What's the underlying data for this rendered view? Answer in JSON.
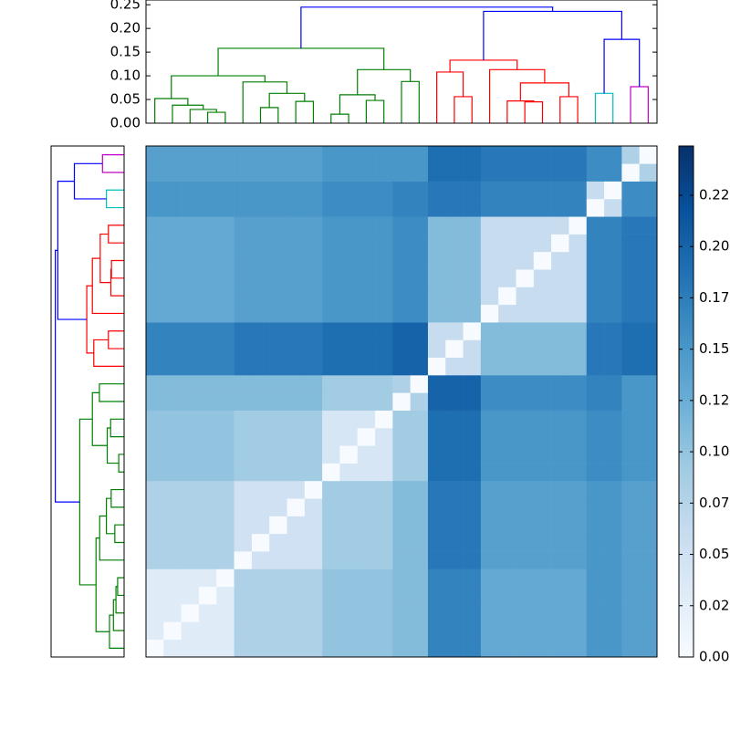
{
  "chart_data": {
    "type": "clustermap",
    "matrix": [
      [
        0,
        0.03,
        0.03,
        0.03,
        0.03,
        0.08,
        0.08,
        0.08,
        0.08,
        0.08,
        0.1,
        0.1,
        0.1,
        0.1,
        0.11,
        0.11,
        0.17,
        0.17,
        0.17,
        0.13,
        0.13,
        0.13,
        0.13,
        0.13,
        0.13,
        0.15,
        0.15,
        0.14,
        0.14
      ],
      [
        0.03,
        0,
        0.03,
        0.03,
        0.03,
        0.08,
        0.08,
        0.08,
        0.08,
        0.08,
        0.1,
        0.1,
        0.1,
        0.1,
        0.11,
        0.11,
        0.17,
        0.17,
        0.17,
        0.13,
        0.13,
        0.13,
        0.13,
        0.13,
        0.13,
        0.15,
        0.15,
        0.14,
        0.14
      ],
      [
        0.03,
        0.03,
        0,
        0.03,
        0.03,
        0.08,
        0.08,
        0.08,
        0.08,
        0.08,
        0.1,
        0.1,
        0.1,
        0.1,
        0.11,
        0.11,
        0.17,
        0.17,
        0.17,
        0.13,
        0.13,
        0.13,
        0.13,
        0.13,
        0.13,
        0.15,
        0.15,
        0.14,
        0.14
      ],
      [
        0.03,
        0.03,
        0.03,
        0,
        0.03,
        0.08,
        0.08,
        0.08,
        0.08,
        0.08,
        0.1,
        0.1,
        0.1,
        0.1,
        0.11,
        0.11,
        0.17,
        0.17,
        0.17,
        0.13,
        0.13,
        0.13,
        0.13,
        0.13,
        0.13,
        0.15,
        0.15,
        0.14,
        0.14
      ],
      [
        0.03,
        0.03,
        0.03,
        0.03,
        0,
        0.08,
        0.08,
        0.08,
        0.08,
        0.08,
        0.1,
        0.1,
        0.1,
        0.1,
        0.11,
        0.11,
        0.17,
        0.17,
        0.17,
        0.13,
        0.13,
        0.13,
        0.13,
        0.13,
        0.13,
        0.15,
        0.15,
        0.14,
        0.14
      ],
      [
        0.08,
        0.08,
        0.08,
        0.08,
        0.08,
        0,
        0.05,
        0.05,
        0.05,
        0.05,
        0.09,
        0.09,
        0.09,
        0.09,
        0.11,
        0.11,
        0.18,
        0.18,
        0.18,
        0.14,
        0.14,
        0.14,
        0.14,
        0.14,
        0.14,
        0.15,
        0.15,
        0.14,
        0.14
      ],
      [
        0.08,
        0.08,
        0.08,
        0.08,
        0.08,
        0.05,
        0,
        0.05,
        0.05,
        0.05,
        0.09,
        0.09,
        0.09,
        0.09,
        0.11,
        0.11,
        0.18,
        0.18,
        0.18,
        0.14,
        0.14,
        0.14,
        0.14,
        0.14,
        0.14,
        0.15,
        0.15,
        0.14,
        0.14
      ],
      [
        0.08,
        0.08,
        0.08,
        0.08,
        0.08,
        0.05,
        0.05,
        0,
        0.05,
        0.05,
        0.09,
        0.09,
        0.09,
        0.09,
        0.11,
        0.11,
        0.18,
        0.18,
        0.18,
        0.14,
        0.14,
        0.14,
        0.14,
        0.14,
        0.14,
        0.15,
        0.15,
        0.14,
        0.14
      ],
      [
        0.08,
        0.08,
        0.08,
        0.08,
        0.08,
        0.05,
        0.05,
        0.05,
        0,
        0.05,
        0.09,
        0.09,
        0.09,
        0.09,
        0.11,
        0.11,
        0.18,
        0.18,
        0.18,
        0.14,
        0.14,
        0.14,
        0.14,
        0.14,
        0.14,
        0.15,
        0.15,
        0.14,
        0.14
      ],
      [
        0.08,
        0.08,
        0.08,
        0.08,
        0.08,
        0.05,
        0.05,
        0.05,
        0.05,
        0,
        0.09,
        0.09,
        0.09,
        0.09,
        0.11,
        0.11,
        0.18,
        0.18,
        0.18,
        0.14,
        0.14,
        0.14,
        0.14,
        0.14,
        0.14,
        0.15,
        0.15,
        0.14,
        0.14
      ],
      [
        0.1,
        0.1,
        0.1,
        0.1,
        0.1,
        0.09,
        0.09,
        0.09,
        0.09,
        0.09,
        0,
        0.04,
        0.04,
        0.04,
        0.09,
        0.09,
        0.19,
        0.19,
        0.19,
        0.15,
        0.15,
        0.15,
        0.15,
        0.15,
        0.15,
        0.16,
        0.16,
        0.15,
        0.15
      ],
      [
        0.1,
        0.1,
        0.1,
        0.1,
        0.1,
        0.09,
        0.09,
        0.09,
        0.09,
        0.09,
        0.04,
        0,
        0.04,
        0.04,
        0.09,
        0.09,
        0.19,
        0.19,
        0.19,
        0.15,
        0.15,
        0.15,
        0.15,
        0.15,
        0.15,
        0.16,
        0.16,
        0.15,
        0.15
      ],
      [
        0.1,
        0.1,
        0.1,
        0.1,
        0.1,
        0.09,
        0.09,
        0.09,
        0.09,
        0.09,
        0.04,
        0.04,
        0,
        0.04,
        0.09,
        0.09,
        0.19,
        0.19,
        0.19,
        0.15,
        0.15,
        0.15,
        0.15,
        0.15,
        0.15,
        0.16,
        0.16,
        0.15,
        0.15
      ],
      [
        0.1,
        0.1,
        0.1,
        0.1,
        0.1,
        0.09,
        0.09,
        0.09,
        0.09,
        0.09,
        0.04,
        0.04,
        0.04,
        0,
        0.09,
        0.09,
        0.19,
        0.19,
        0.19,
        0.15,
        0.15,
        0.15,
        0.15,
        0.15,
        0.15,
        0.16,
        0.16,
        0.15,
        0.15
      ],
      [
        0.11,
        0.11,
        0.11,
        0.11,
        0.11,
        0.11,
        0.11,
        0.11,
        0.11,
        0.11,
        0.09,
        0.09,
        0.09,
        0.09,
        0,
        0.08,
        0.2,
        0.2,
        0.2,
        0.16,
        0.16,
        0.16,
        0.16,
        0.16,
        0.16,
        0.17,
        0.17,
        0.15,
        0.15
      ],
      [
        0.11,
        0.11,
        0.11,
        0.11,
        0.11,
        0.11,
        0.11,
        0.11,
        0.11,
        0.11,
        0.09,
        0.09,
        0.09,
        0.09,
        0.08,
        0,
        0.2,
        0.2,
        0.2,
        0.16,
        0.16,
        0.16,
        0.16,
        0.16,
        0.16,
        0.17,
        0.17,
        0.15,
        0.15
      ],
      [
        0.17,
        0.17,
        0.17,
        0.17,
        0.17,
        0.18,
        0.18,
        0.18,
        0.18,
        0.18,
        0.19,
        0.19,
        0.19,
        0.19,
        0.2,
        0.2,
        0,
        0.06,
        0.06,
        0.11,
        0.11,
        0.11,
        0.11,
        0.11,
        0.11,
        0.18,
        0.18,
        0.19,
        0.19
      ],
      [
        0.17,
        0.17,
        0.17,
        0.17,
        0.17,
        0.18,
        0.18,
        0.18,
        0.18,
        0.18,
        0.19,
        0.19,
        0.19,
        0.19,
        0.2,
        0.2,
        0.06,
        0,
        0.06,
        0.11,
        0.11,
        0.11,
        0.11,
        0.11,
        0.11,
        0.18,
        0.18,
        0.19,
        0.19
      ],
      [
        0.17,
        0.17,
        0.17,
        0.17,
        0.17,
        0.18,
        0.18,
        0.18,
        0.18,
        0.18,
        0.19,
        0.19,
        0.19,
        0.19,
        0.2,
        0.2,
        0.06,
        0.06,
        0,
        0.11,
        0.11,
        0.11,
        0.11,
        0.11,
        0.11,
        0.18,
        0.18,
        0.19,
        0.19
      ],
      [
        0.13,
        0.13,
        0.13,
        0.13,
        0.13,
        0.14,
        0.14,
        0.14,
        0.14,
        0.14,
        0.15,
        0.15,
        0.15,
        0.15,
        0.16,
        0.16,
        0.11,
        0.11,
        0.11,
        0,
        0.06,
        0.06,
        0.06,
        0.06,
        0.06,
        0.17,
        0.17,
        0.18,
        0.18
      ],
      [
        0.13,
        0.13,
        0.13,
        0.13,
        0.13,
        0.14,
        0.14,
        0.14,
        0.14,
        0.14,
        0.15,
        0.15,
        0.15,
        0.15,
        0.16,
        0.16,
        0.11,
        0.11,
        0.11,
        0.06,
        0,
        0.06,
        0.06,
        0.06,
        0.06,
        0.17,
        0.17,
        0.18,
        0.18
      ],
      [
        0.13,
        0.13,
        0.13,
        0.13,
        0.13,
        0.14,
        0.14,
        0.14,
        0.14,
        0.14,
        0.15,
        0.15,
        0.15,
        0.15,
        0.16,
        0.16,
        0.11,
        0.11,
        0.11,
        0.06,
        0.06,
        0,
        0.06,
        0.06,
        0.06,
        0.17,
        0.17,
        0.18,
        0.18
      ],
      [
        0.13,
        0.13,
        0.13,
        0.13,
        0.13,
        0.14,
        0.14,
        0.14,
        0.14,
        0.14,
        0.15,
        0.15,
        0.15,
        0.15,
        0.16,
        0.16,
        0.11,
        0.11,
        0.11,
        0.06,
        0.06,
        0.06,
        0,
        0.06,
        0.06,
        0.17,
        0.17,
        0.18,
        0.18
      ],
      [
        0.13,
        0.13,
        0.13,
        0.13,
        0.13,
        0.14,
        0.14,
        0.14,
        0.14,
        0.14,
        0.15,
        0.15,
        0.15,
        0.15,
        0.16,
        0.16,
        0.11,
        0.11,
        0.11,
        0.06,
        0.06,
        0.06,
        0.06,
        0,
        0.06,
        0.17,
        0.17,
        0.18,
        0.18
      ],
      [
        0.13,
        0.13,
        0.13,
        0.13,
        0.13,
        0.14,
        0.14,
        0.14,
        0.14,
        0.14,
        0.15,
        0.15,
        0.15,
        0.15,
        0.16,
        0.16,
        0.11,
        0.11,
        0.11,
        0.06,
        0.06,
        0.06,
        0.06,
        0.06,
        0,
        0.17,
        0.17,
        0.18,
        0.18
      ],
      [
        0.15,
        0.15,
        0.15,
        0.15,
        0.15,
        0.15,
        0.15,
        0.15,
        0.15,
        0.15,
        0.16,
        0.16,
        0.16,
        0.16,
        0.17,
        0.17,
        0.18,
        0.18,
        0.18,
        0.17,
        0.17,
        0.17,
        0.17,
        0.17,
        0.17,
        0,
        0.06,
        0.16,
        0.16
      ],
      [
        0.15,
        0.15,
        0.15,
        0.15,
        0.15,
        0.15,
        0.15,
        0.15,
        0.15,
        0.15,
        0.16,
        0.16,
        0.16,
        0.16,
        0.17,
        0.17,
        0.18,
        0.18,
        0.18,
        0.17,
        0.17,
        0.17,
        0.17,
        0.17,
        0.17,
        0.06,
        0,
        0.16,
        0.16
      ],
      [
        0.14,
        0.14,
        0.14,
        0.14,
        0.14,
        0.14,
        0.14,
        0.14,
        0.14,
        0.14,
        0.15,
        0.15,
        0.15,
        0.15,
        0.15,
        0.15,
        0.19,
        0.19,
        0.19,
        0.18,
        0.18,
        0.18,
        0.18,
        0.18,
        0.18,
        0.16,
        0.16,
        0,
        0.08
      ],
      [
        0.14,
        0.14,
        0.14,
        0.14,
        0.14,
        0.14,
        0.14,
        0.14,
        0.14,
        0.14,
        0.15,
        0.15,
        0.15,
        0.15,
        0.15,
        0.15,
        0.19,
        0.19,
        0.19,
        0.18,
        0.18,
        0.18,
        0.18,
        0.18,
        0.18,
        0.16,
        0.16,
        0.08,
        0
      ]
    ],
    "clim": [
      0,
      0.249
    ],
    "colors": [
      "#f7fbff",
      "#deebf7",
      "#c6dbef",
      "#9ecae1",
      "#6baed6",
      "#4292c6",
      "#2171b5",
      "#08519c",
      "#08306b"
    ],
    "cticks": [
      {
        "value": 0,
        "label": "0.00"
      },
      {
        "value": 0.025,
        "label": "0.02"
      },
      {
        "value": 0.05,
        "label": "0.05"
      },
      {
        "value": 0.075,
        "label": "0.07"
      },
      {
        "value": 0.1,
        "label": "0.10"
      },
      {
        "value": 0.125,
        "label": "0.12"
      },
      {
        "value": 0.15,
        "label": "0.15"
      },
      {
        "value": 0.175,
        "label": "0.17"
      },
      {
        "value": 0.2,
        "label": "0.20"
      },
      {
        "value": 0.225,
        "label": "0.22"
      }
    ],
    "dendrogram": {
      "ylim": [
        0,
        0.26
      ],
      "yticks": [
        {
          "value": 0,
          "label": "0.00"
        },
        {
          "value": 0.05,
          "label": "0.05"
        },
        {
          "value": 0.1,
          "label": "0.10"
        },
        {
          "value": 0.15,
          "label": "0.15"
        },
        {
          "value": 0.2,
          "label": "0.20"
        },
        {
          "value": 0.25,
          "label": "0.25"
        }
      ],
      "links": [
        {
          "left": 3,
          "right": 4,
          "height": 0.023,
          "color": "#007f00"
        },
        {
          "left": 2,
          "right": 29,
          "height": 0.029,
          "color": "#007f00"
        },
        {
          "left": 1,
          "right": 30,
          "height": 0.038,
          "color": "#007f00"
        },
        {
          "left": 0,
          "right": 31,
          "height": 0.052,
          "color": "#007f00"
        },
        {
          "left": 6,
          "right": 7,
          "height": 0.033,
          "color": "#007f00"
        },
        {
          "left": 8,
          "right": 9,
          "height": 0.046,
          "color": "#007f00"
        },
        {
          "left": 33,
          "right": 34,
          "height": 0.063,
          "color": "#007f00"
        },
        {
          "left": 5,
          "right": 35,
          "height": 0.087,
          "color": "#007f00"
        },
        {
          "left": 32,
          "right": 36,
          "height": 0.1,
          "color": "#007f00"
        },
        {
          "left": 10,
          "right": 11,
          "height": 0.019,
          "color": "#007f00"
        },
        {
          "left": 12,
          "right": 13,
          "height": 0.048,
          "color": "#007f00"
        },
        {
          "left": 38,
          "right": 39,
          "height": 0.06,
          "color": "#007f00"
        },
        {
          "left": 14,
          "right": 15,
          "height": 0.088,
          "color": "#007f00"
        },
        {
          "left": 40,
          "right": 41,
          "height": 0.113,
          "color": "#007f00"
        },
        {
          "left": 37,
          "right": 42,
          "height": 0.158,
          "color": "#007f00"
        },
        {
          "left": 17,
          "right": 18,
          "height": 0.056,
          "color": "#ff0000"
        },
        {
          "left": 16,
          "right": 44,
          "height": 0.108,
          "color": "#ff0000"
        },
        {
          "left": 21,
          "right": 22,
          "height": 0.045,
          "color": "#ff0000"
        },
        {
          "left": 20,
          "right": 46,
          "height": 0.047,
          "color": "#ff0000"
        },
        {
          "left": 23,
          "right": 24,
          "height": 0.056,
          "color": "#ff0000"
        },
        {
          "left": 47,
          "right": 48,
          "height": 0.085,
          "color": "#ff0000"
        },
        {
          "left": 19,
          "right": 49,
          "height": 0.113,
          "color": "#ff0000"
        },
        {
          "left": 45,
          "right": 50,
          "height": 0.133,
          "color": "#ff0000"
        },
        {
          "left": 25,
          "right": 26,
          "height": 0.063,
          "color": "#00bfbf"
        },
        {
          "left": 27,
          "right": 28,
          "height": 0.077,
          "color": "#bf00bf"
        },
        {
          "left": 52,
          "right": 53,
          "height": 0.177,
          "color": "#0000ff"
        },
        {
          "left": 51,
          "right": 54,
          "height": 0.236,
          "color": "#0000ff"
        },
        {
          "left": 43,
          "right": 55,
          "height": 0.245,
          "color": "#0000ff"
        }
      ]
    }
  }
}
